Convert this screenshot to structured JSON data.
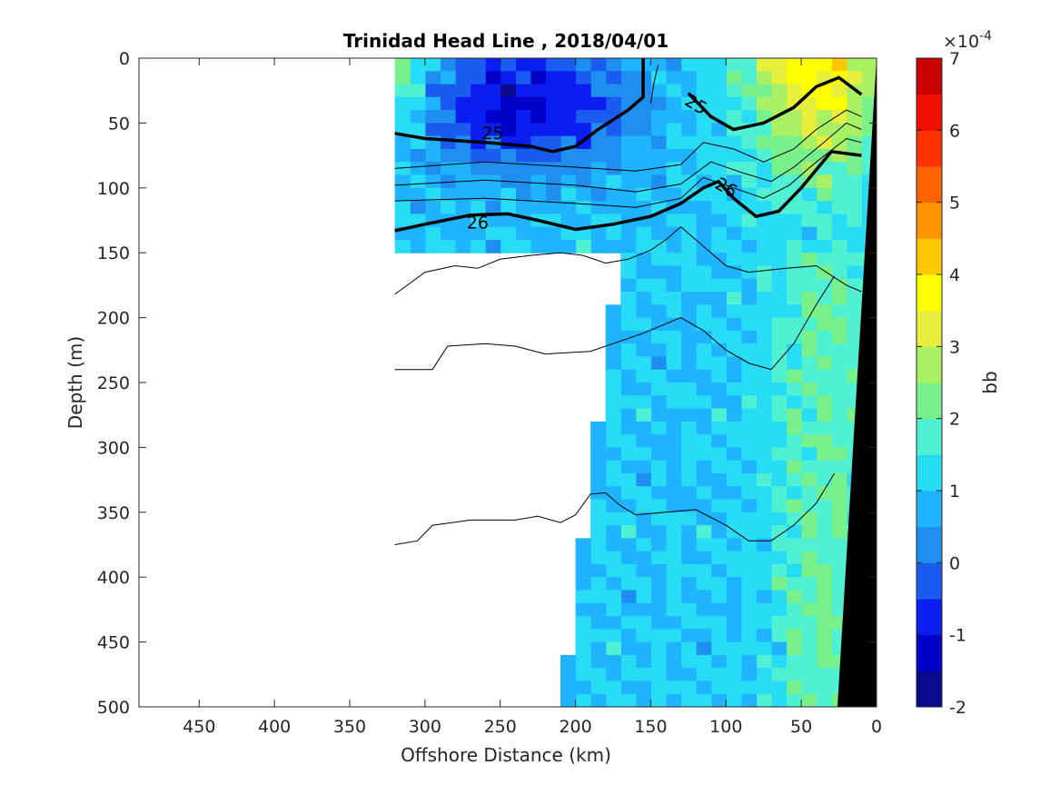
{
  "chart_data": {
    "type": "heatmap",
    "title": "Trinidad Head Line , 2018/04/01",
    "xlabel": "Offshore Distance (km)",
    "ylabel": "Depth (m)",
    "xlim": [
      490,
      0
    ],
    "ylim": [
      0,
      500
    ],
    "x_reversed": true,
    "y_reversed": true,
    "x_ticks": [
      "450",
      "400",
      "350",
      "300",
      "250",
      "200",
      "150",
      "100",
      "50",
      "0"
    ],
    "y_ticks": [
      "0",
      "50",
      "100",
      "150",
      "200",
      "250",
      "300",
      "350",
      "400",
      "450",
      "500"
    ],
    "colorbar": {
      "label": "bb",
      "exponent_label": "×10",
      "exponent_power": "-4",
      "range": [
        -2,
        7
      ],
      "ticks": [
        "-2",
        "-1",
        "0",
        "1",
        "2",
        "3",
        "4",
        "5",
        "6",
        "7"
      ],
      "colors": [
        "#0a0a8c",
        "#0000c8",
        "#0a1ef0",
        "#1a5cf0",
        "#1e8ff0",
        "#1eb4ff",
        "#28dcf5",
        "#50f0d2",
        "#78f08c",
        "#aaf064",
        "#e6f03c",
        "#ffff00",
        "#ffc800",
        "#ff9600",
        "#ff6400",
        "#ff3200",
        "#f01000",
        "#c80000"
      ]
    },
    "contour_labels": [
      "25",
      "25",
      "26",
      "26"
    ],
    "isopycnals": [
      {
        "value": "25",
        "points": [
          [
            320,
            58
          ],
          [
            300,
            62
          ],
          [
            260,
            65
          ],
          [
            230,
            68
          ],
          [
            215,
            72
          ],
          [
            200,
            68
          ],
          [
            185,
            55
          ],
          [
            165,
            40
          ],
          [
            155,
            30
          ],
          [
            155,
            0
          ]
        ]
      },
      {
        "value": "26",
        "points": [
          [
            320,
            133
          ],
          [
            300,
            128
          ],
          [
            270,
            121
          ],
          [
            245,
            120
          ],
          [
            225,
            125
          ],
          [
            200,
            132
          ],
          [
            175,
            128
          ],
          [
            150,
            122
          ],
          [
            130,
            112
          ],
          [
            115,
            100
          ],
          [
            105,
            95
          ],
          [
            95,
            108
          ],
          [
            80,
            122
          ],
          [
            65,
            118
          ],
          [
            50,
            100
          ],
          [
            30,
            72
          ],
          [
            10,
            75
          ]
        ]
      },
      {
        "value": "25",
        "points": [
          [
            125,
            27
          ],
          [
            110,
            45
          ],
          [
            95,
            55
          ],
          [
            75,
            50
          ],
          [
            55,
            38
          ],
          [
            40,
            22
          ],
          [
            25,
            15
          ],
          [
            10,
            28
          ]
        ]
      }
    ],
    "thin_contours": [
      [
        [
          320,
          85
        ],
        [
          260,
          80
        ],
        [
          200,
          84
        ],
        [
          160,
          87
        ],
        [
          130,
          82
        ],
        [
          115,
          65
        ],
        [
          95,
          70
        ],
        [
          75,
          80
        ],
        [
          55,
          70
        ],
        [
          40,
          55
        ],
        [
          20,
          40
        ],
        [
          10,
          45
        ]
      ],
      [
        [
          320,
          98
        ],
        [
          260,
          94
        ],
        [
          200,
          98
        ],
        [
          160,
          103
        ],
        [
          130,
          97
        ],
        [
          110,
          80
        ],
        [
          90,
          88
        ],
        [
          70,
          95
        ],
        [
          55,
          84
        ],
        [
          35,
          65
        ],
        [
          20,
          50
        ],
        [
          10,
          55
        ]
      ],
      [
        [
          320,
          110
        ],
        [
          260,
          108
        ],
        [
          200,
          112
        ],
        [
          160,
          115
        ],
        [
          130,
          108
        ],
        [
          115,
          92
        ],
        [
          95,
          100
        ],
        [
          75,
          108
        ],
        [
          58,
          98
        ],
        [
          40,
          80
        ],
        [
          20,
          62
        ],
        [
          10,
          65
        ]
      ],
      [
        [
          320,
          182
        ],
        [
          300,
          165
        ],
        [
          280,
          160
        ],
        [
          265,
          162
        ],
        [
          250,
          155
        ],
        [
          230,
          152
        ],
        [
          210,
          150
        ],
        [
          195,
          152
        ],
        [
          180,
          158
        ],
        [
          165,
          155
        ],
        [
          150,
          148
        ],
        [
          140,
          140
        ],
        [
          130,
          130
        ],
        [
          115,
          145
        ],
        [
          100,
          160
        ],
        [
          85,
          165
        ],
        [
          60,
          162
        ],
        [
          40,
          160
        ],
        [
          20,
          175
        ],
        [
          10,
          180
        ]
      ],
      [
        [
          320,
          240
        ],
        [
          295,
          240
        ],
        [
          285,
          222
        ],
        [
          260,
          220
        ],
        [
          240,
          222
        ],
        [
          220,
          228
        ],
        [
          190,
          226
        ],
        [
          170,
          218
        ],
        [
          155,
          212
        ],
        [
          130,
          200
        ],
        [
          115,
          210
        ],
        [
          100,
          225
        ],
        [
          85,
          235
        ],
        [
          70,
          240
        ],
        [
          55,
          220
        ],
        [
          40,
          190
        ],
        [
          28,
          168
        ]
      ],
      [
        [
          320,
          375
        ],
        [
          305,
          372
        ],
        [
          295,
          360
        ],
        [
          270,
          356
        ],
        [
          240,
          356
        ],
        [
          225,
          353
        ],
        [
          210,
          358
        ],
        [
          200,
          352
        ],
        [
          190,
          336
        ],
        [
          180,
          335
        ],
        [
          170,
          345
        ],
        [
          160,
          352
        ],
        [
          140,
          350
        ],
        [
          120,
          348
        ],
        [
          100,
          360
        ],
        [
          85,
          372
        ],
        [
          70,
          372
        ],
        [
          55,
          360
        ],
        [
          40,
          343
        ],
        [
          28,
          320
        ]
      ],
      [
        [
          150,
          35
        ],
        [
          148,
          20
        ],
        [
          145,
          5
        ]
      ]
    ]
  }
}
